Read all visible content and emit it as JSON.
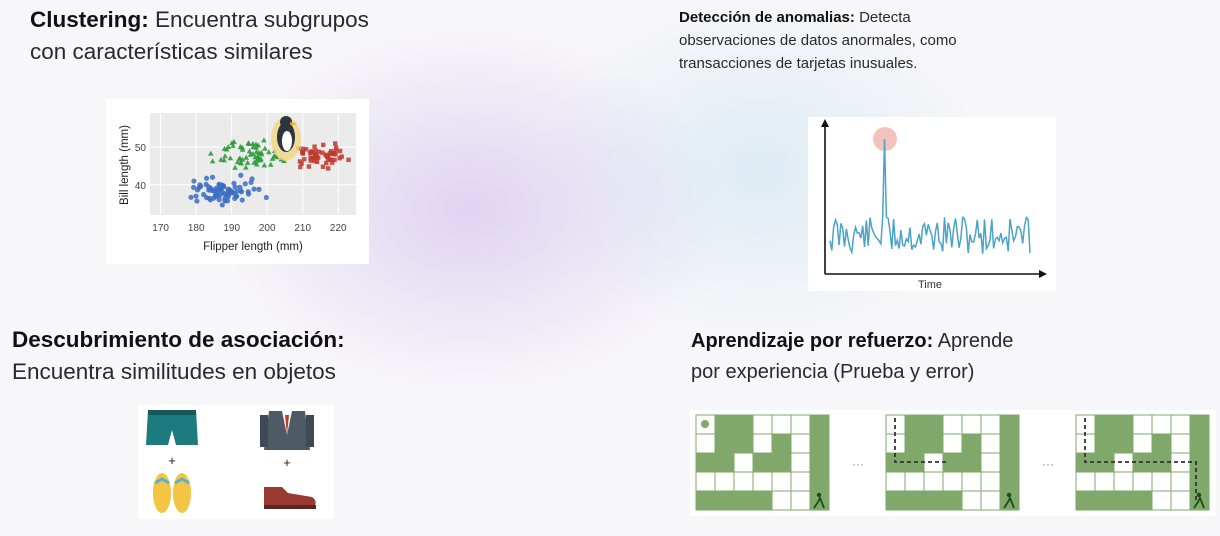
{
  "clustering": {
    "heading": "Clustering:",
    "description_line1": "Encuentra subgrupos",
    "description_line2": "con características similares",
    "plot": {
      "xlabel": "Flipper length (mm)",
      "ylabel": "Bill length (mm)",
      "xticks": [
        "170",
        "180",
        "190",
        "200",
        "210",
        "220"
      ],
      "yticks": [
        "40",
        "50"
      ],
      "group_colors": [
        "#3b6fc4",
        "#2e9a3a",
        "#c0392b"
      ]
    }
  },
  "anomaly": {
    "heading": "Detección de anomalias:",
    "description_line1": "Detecta",
    "description_line2": "observaciones de datos anormales, como",
    "description_line3": "transacciones de tarjetas inusuales.",
    "plot": {
      "xlabel": "Time",
      "line_color": "#4aa3c8",
      "highlight_color": "#f0b9b0"
    }
  },
  "association": {
    "heading": "Descubrimiento de asociación:",
    "description": "Encuentra similitudes en objetos",
    "plus": "+"
  },
  "reinforcement": {
    "heading": "Aprendizaje por refuerzo:",
    "description_line1": "Aprende",
    "description_line2": "por experiencia (Prueba y error)",
    "ellipsis": "···",
    "grid_color": "#7fa86a"
  }
}
